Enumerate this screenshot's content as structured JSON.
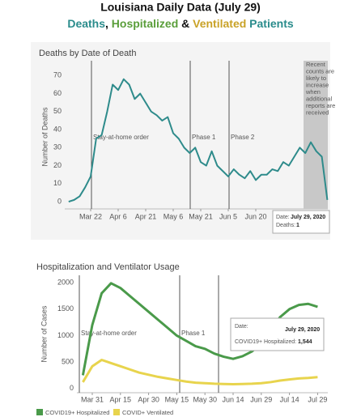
{
  "header": {
    "title": "Louisiana Daily Data (July 29)",
    "subtitle": [
      "Deaths",
      ", ",
      "Hospitalized",
      " & ",
      "Ventilated",
      " Patients"
    ]
  },
  "chart_data": [
    {
      "type": "line",
      "title": "Deaths by Date of Death",
      "y_label": "Number of Deaths",
      "categories": [
        null,
        null,
        null,
        null,
        "Mar 22",
        null,
        null,
        null,
        null,
        "Apr 6",
        null,
        null,
        null,
        null,
        "Apr 21",
        null,
        null,
        null,
        null,
        "May 6",
        null,
        null,
        null,
        null,
        "May 21",
        null,
        null,
        null,
        null,
        "Jun 5",
        null,
        null,
        null,
        null,
        "Jun 20",
        null,
        null,
        null,
        null,
        null,
        null,
        null,
        null,
        null,
        null,
        null,
        null,
        null
      ],
      "series": [
        {
          "name": "Deaths",
          "color": "#2e8b8b",
          "values": [
            0,
            1,
            3,
            8,
            14,
            35,
            37,
            50,
            65,
            62,
            68,
            65,
            57,
            60,
            55,
            50,
            48,
            45,
            47,
            38,
            35,
            30,
            27,
            30,
            22,
            20,
            28,
            20,
            17,
            14,
            18,
            15,
            13,
            17,
            12,
            15,
            15,
            18,
            17,
            22,
            20,
            25,
            30,
            27,
            33,
            28,
            25,
            1
          ]
        }
      ],
      "ylim": [
        -4,
        76
      ],
      "yticks": [
        0,
        10,
        20,
        30,
        40,
        50,
        60,
        70
      ],
      "grid": false,
      "annotations": [
        "Stay-at-home order",
        "Phase 1",
        "Phase 2"
      ],
      "note": [
        "Recent",
        "counts are",
        "likely to",
        "increase",
        "when",
        "additional",
        "reports are",
        "received"
      ],
      "tooltip": {
        "date_label": "Date:",
        "date": "July 29, 2020",
        "label": "Deaths:"
      }
    },
    {
      "type": "line",
      "title": "Hospitalization and Ventilator Usage",
      "y_label": "Number of Cases",
      "categories": [
        null,
        "Mar 31",
        null,
        null,
        "Apr 15",
        null,
        null,
        "Apr 30",
        null,
        null,
        "May 15",
        null,
        null,
        "May 30",
        null,
        null,
        "Jun 14",
        null,
        null,
        "Jun 29",
        null,
        null,
        "Jul 14",
        null,
        null,
        "Jul 29"
      ],
      "series": [
        {
          "name": "COVID19+ Hospitalized",
          "color": "#4a9a4a",
          "values": [
            250,
            1200,
            1800,
            1990,
            1900,
            1750,
            1600,
            1450,
            1300,
            1150,
            1000,
            900,
            800,
            750,
            660,
            600,
            560,
            610,
            700,
            850,
            1100,
            1350,
            1500,
            1580,
            1600,
            1544
          ]
        },
        {
          "name": "COVID+ Ventilated",
          "color": "#e8d44d",
          "values": [
            120,
            420,
            540,
            480,
            420,
            360,
            300,
            260,
            220,
            190,
            160,
            130,
            110,
            100,
            90,
            85,
            80,
            85,
            90,
            100,
            120,
            150,
            170,
            190,
            200,
            215
          ]
        }
      ],
      "ylim": [
        -80,
        2140
      ],
      "yticks": [
        0,
        500,
        1000,
        1500,
        2000
      ],
      "grid": false,
      "annotations": [
        "Stay-at-home order",
        "Phase 1"
      ],
      "tooltip": {
        "date_label": "Date:",
        "date": "July 29, 2020",
        "label": "COVID19+ Hospitalized:",
        "value_label": "1,544"
      },
      "legend": "bottom"
    }
  ]
}
